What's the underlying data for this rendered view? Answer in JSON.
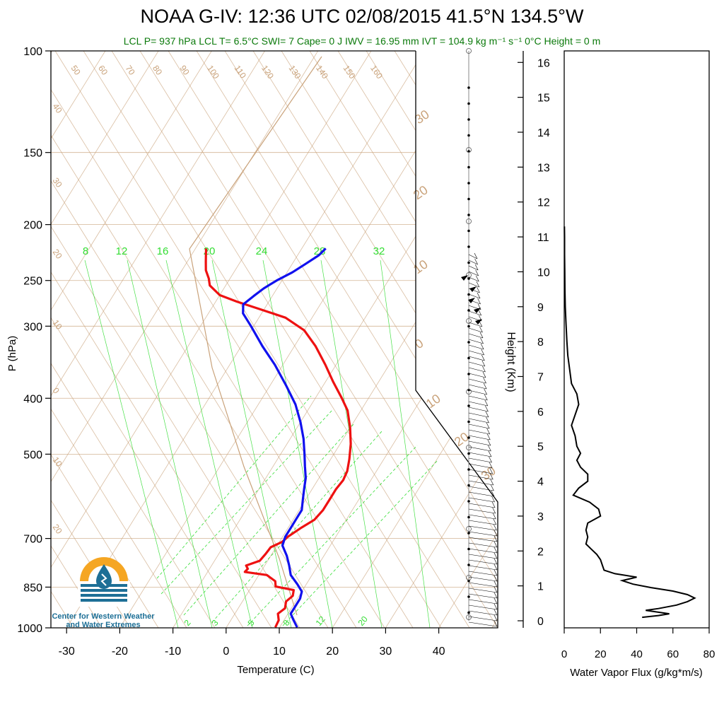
{
  "title": "NOAA G-IV: 12:36 UTC 02/08/2015  41.5°N 134.5°W",
  "subtitle": "LCL P= 937 hPa  LCL T= 6.5°C  SWI= 7  Cape= 0 J  IWV = 16.95 mm  IVT = 104.9 kg m⁻¹ s⁻¹  0°C Height = 0 m",
  "logo": {
    "line1": "Center for Western Weather",
    "line2": "and Water Extremes"
  },
  "colors": {
    "temperature": "#ee1111",
    "dewpoint_trace": "#1111ee",
    "adiabat": "#c9a27a",
    "mixing_ratio": "#33dd33",
    "subtitle": "#0b7a0b",
    "logo_blue": "#1d6f96",
    "logo_orange": "#f5a623"
  },
  "chart_data": [
    {
      "type": "line",
      "subtype": "skew-T log-P sounding",
      "xlabel": "Temperature (C)",
      "ylabel": "P (hPa)",
      "x_ticks": [
        "-30",
        "-20",
        "-10",
        "0",
        "10",
        "20",
        "30",
        "40"
      ],
      "y_ticks": [
        "100",
        "150",
        "200",
        "250",
        "300",
        "400",
        "500",
        "700",
        "850",
        "1000"
      ],
      "ylim": [
        1000,
        100
      ],
      "y_scale": "log",
      "isotherm_labels": [
        "50",
        "60",
        "70",
        "80",
        "90",
        "100",
        "110",
        "120",
        "130",
        "140",
        "150",
        "160"
      ],
      "adiabat_labels_left": [
        "40",
        "30",
        "20",
        "10",
        "0",
        "10",
        "20"
      ],
      "adiabat_labels_right": [
        "30",
        "20",
        "10",
        "0",
        "10",
        "20",
        "30"
      ],
      "mixing_ratio_labels_top": [
        "8",
        "12",
        "16",
        "20",
        "24",
        "28",
        "32"
      ],
      "mixing_ratio_labels_bottom": [
        "2",
        "3",
        "5",
        "8",
        "12",
        "20"
      ],
      "series": [
        {
          "color": "red",
          "points": [
            {
              "p": 998,
              "t": 9.2
            },
            {
              "p": 970,
              "t": 9.0
            },
            {
              "p": 945,
              "t": 8.1
            },
            {
              "p": 925,
              "t": 8.8
            },
            {
              "p": 900,
              "t": 8.2
            },
            {
              "p": 880,
              "t": 8.8
            },
            {
              "p": 860,
              "t": 8.3
            },
            {
              "p": 848,
              "t": 4.5
            },
            {
              "p": 830,
              "t": 3.8
            },
            {
              "p": 810,
              "t": 1.5
            },
            {
              "p": 800,
              "t": -3.0
            },
            {
              "p": 790,
              "t": -2.8
            },
            {
              "p": 780,
              "t": -3.5
            },
            {
              "p": 765,
              "t": -1.5
            },
            {
              "p": 745,
              "t": -1.2
            },
            {
              "p": 725,
              "t": -1.0
            },
            {
              "p": 710,
              "t": 0.5
            },
            {
              "p": 695,
              "t": 1.0
            },
            {
              "p": 670,
              "t": 2.5
            },
            {
              "p": 650,
              "t": 4.0
            },
            {
              "p": 625,
              "t": 4.5
            },
            {
              "p": 600,
              "t": 4.5
            },
            {
              "p": 575,
              "t": 4.5
            },
            {
              "p": 555,
              "t": 4.8
            },
            {
              "p": 535,
              "t": 4.5
            },
            {
              "p": 510,
              "t": 3.5
            },
            {
              "p": 480,
              "t": 2.0
            },
            {
              "p": 450,
              "t": 0.0
            },
            {
              "p": 420,
              "t": -2.5
            },
            {
              "p": 400,
              "t": -5.0
            },
            {
              "p": 375,
              "t": -8.5
            },
            {
              "p": 350,
              "t": -12.0
            },
            {
              "p": 325,
              "t": -16.0
            },
            {
              "p": 305,
              "t": -20.0
            },
            {
              "p": 290,
              "t": -25.0
            },
            {
              "p": 280,
              "t": -31.0
            },
            {
              "p": 272,
              "t": -36.0
            },
            {
              "p": 265,
              "t": -40.0
            },
            {
              "p": 255,
              "t": -43.0
            },
            {
              "p": 248,
              "t": -44.0
            },
            {
              "p": 240,
              "t": -45.5
            },
            {
              "p": 232,
              "t": -46.5
            },
            {
              "p": 224,
              "t": -47.5
            },
            {
              "p": 220,
              "t": -48.0
            }
          ]
        },
        {
          "color": "blue",
          "points": [
            {
              "p": 998,
              "t": 13.3
            },
            {
              "p": 970,
              "t": 11.8
            },
            {
              "p": 945,
              "t": 10.5
            },
            {
              "p": 920,
              "t": 10.5
            },
            {
              "p": 890,
              "t": 10.5
            },
            {
              "p": 865,
              "t": 10.0
            },
            {
              "p": 840,
              "t": 8.3
            },
            {
              "p": 810,
              "t": 6.0
            },
            {
              "p": 780,
              "t": 4.6
            },
            {
              "p": 750,
              "t": 3.0
            },
            {
              "p": 720,
              "t": 1.0
            },
            {
              "p": 695,
              "t": 0.5
            },
            {
              "p": 670,
              "t": 0.5
            },
            {
              "p": 650,
              "t": 0.5
            },
            {
              "p": 625,
              "t": 0.5
            },
            {
              "p": 600,
              "t": -0.5
            },
            {
              "p": 575,
              "t": -1.5
            },
            {
              "p": 550,
              "t": -2.5
            },
            {
              "p": 525,
              "t": -4.0
            },
            {
              "p": 500,
              "t": -5.5
            },
            {
              "p": 470,
              "t": -7.5
            },
            {
              "p": 440,
              "t": -10.0
            },
            {
              "p": 410,
              "t": -13.0
            },
            {
              "p": 380,
              "t": -17.0
            },
            {
              "p": 350,
              "t": -21.5
            },
            {
              "p": 325,
              "t": -26.0
            },
            {
              "p": 300,
              "t": -30.5
            },
            {
              "p": 285,
              "t": -33.5
            },
            {
              "p": 275,
              "t": -34.5
            },
            {
              "p": 266,
              "t": -33.5
            },
            {
              "p": 258,
              "t": -32.5
            },
            {
              "p": 250,
              "t": -31.0
            },
            {
              "p": 242,
              "t": -29.0
            },
            {
              "p": 234,
              "t": -27.5
            },
            {
              "p": 226,
              "t": -26.0
            },
            {
              "p": 220,
              "t": -25.5
            }
          ]
        }
      ]
    },
    {
      "type": "line",
      "subtype": "wind barbs",
      "ylabel": "Height (Km)",
      "y_ticks": [
        "0",
        "1",
        "2",
        "3",
        "4",
        "5",
        "6",
        "7",
        "8",
        "9",
        "10",
        "11",
        "12",
        "13",
        "14",
        "15",
        "16"
      ],
      "ylim": [
        0,
        16
      ]
    },
    {
      "type": "line",
      "xlabel": "Water Vapor Flux (g/kg*m/s)",
      "x_ticks": [
        "0",
        "20",
        "40",
        "60",
        "80"
      ],
      "xlim": [
        0,
        80
      ],
      "ylim": [
        0,
        16
      ],
      "series": [
        {
          "points": [
            {
              "h": 0.1,
              "v": 43
            },
            {
              "h": 0.15,
              "v": 52
            },
            {
              "h": 0.2,
              "v": 58
            },
            {
              "h": 0.3,
              "v": 45
            },
            {
              "h": 0.35,
              "v": 52
            },
            {
              "h": 0.45,
              "v": 62
            },
            {
              "h": 0.55,
              "v": 68
            },
            {
              "h": 0.65,
              "v": 72
            },
            {
              "h": 0.75,
              "v": 68
            },
            {
              "h": 0.85,
              "v": 60
            },
            {
              "h": 0.95,
              "v": 48
            },
            {
              "h": 1.05,
              "v": 38
            },
            {
              "h": 1.15,
              "v": 32
            },
            {
              "h": 1.25,
              "v": 40
            },
            {
              "h": 1.35,
              "v": 28
            },
            {
              "h": 1.45,
              "v": 22
            },
            {
              "h": 1.6,
              "v": 21
            },
            {
              "h": 1.75,
              "v": 20
            },
            {
              "h": 1.9,
              "v": 18
            },
            {
              "h": 2.05,
              "v": 15
            },
            {
              "h": 2.2,
              "v": 12
            },
            {
              "h": 2.4,
              "v": 13
            },
            {
              "h": 2.6,
              "v": 12
            },
            {
              "h": 2.8,
              "v": 13
            },
            {
              "h": 3.0,
              "v": 20
            },
            {
              "h": 3.2,
              "v": 19
            },
            {
              "h": 3.4,
              "v": 14
            },
            {
              "h": 3.6,
              "v": 5
            },
            {
              "h": 3.8,
              "v": 8
            },
            {
              "h": 4.0,
              "v": 13
            },
            {
              "h": 4.2,
              "v": 13
            },
            {
              "h": 4.4,
              "v": 9
            },
            {
              "h": 4.6,
              "v": 7
            },
            {
              "h": 4.8,
              "v": 9
            },
            {
              "h": 5.0,
              "v": 7
            },
            {
              "h": 5.3,
              "v": 6
            },
            {
              "h": 5.6,
              "v": 4
            },
            {
              "h": 5.9,
              "v": 6
            },
            {
              "h": 6.2,
              "v": 8
            },
            {
              "h": 6.5,
              "v": 7
            },
            {
              "h": 6.8,
              "v": 4
            },
            {
              "h": 7.2,
              "v": 3
            },
            {
              "h": 7.6,
              "v": 2
            },
            {
              "h": 8.0,
              "v": 1.5
            },
            {
              "h": 8.5,
              "v": 1
            },
            {
              "h": 9.0,
              "v": 0.6
            },
            {
              "h": 9.5,
              "v": 0.4
            },
            {
              "h": 10.0,
              "v": 0.3
            },
            {
              "h": 10.5,
              "v": 0.2
            },
            {
              "h": 11.0,
              "v": 0.2
            },
            {
              "h": 11.3,
              "v": 0.1
            }
          ]
        }
      ]
    }
  ]
}
